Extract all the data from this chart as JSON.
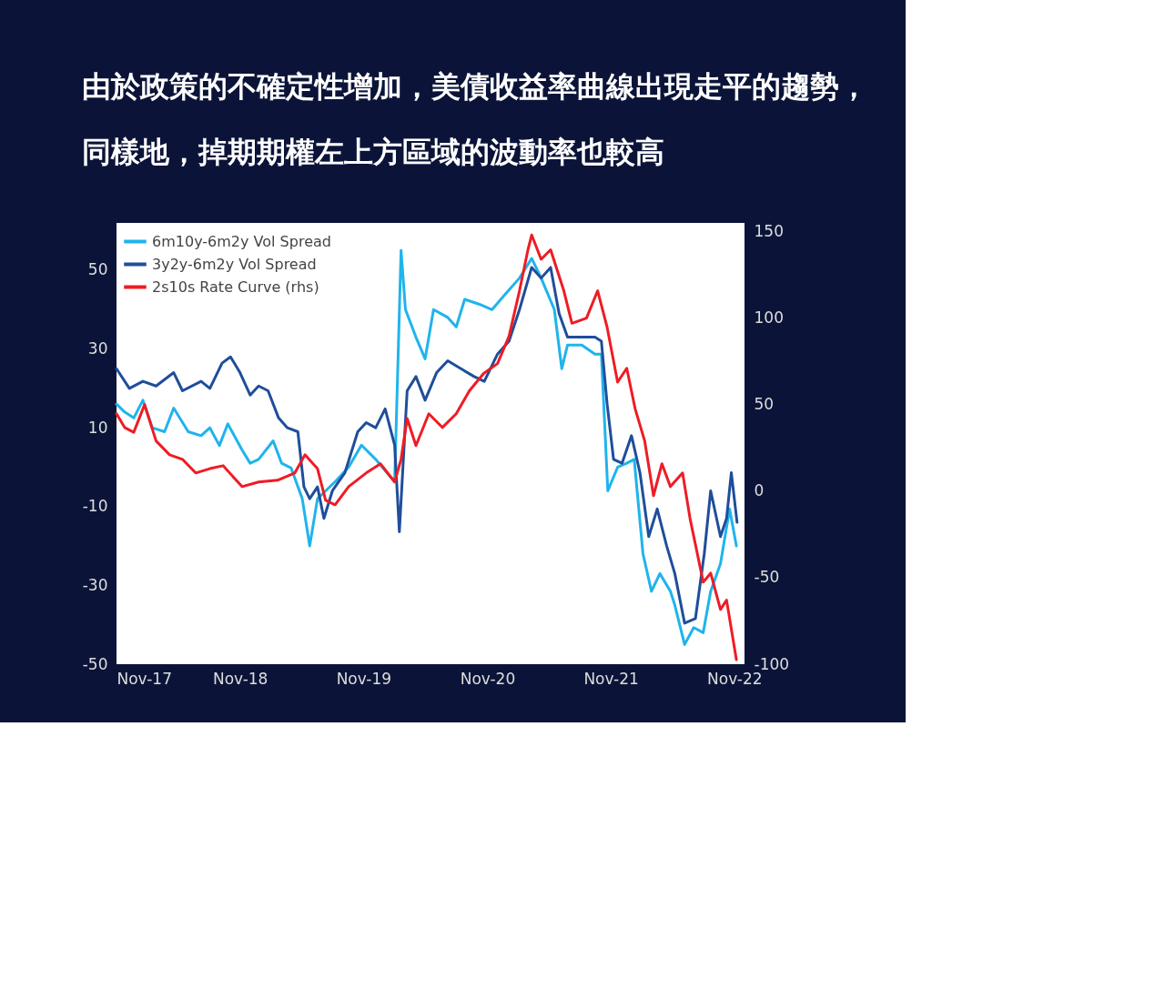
{
  "chart_data": {
    "type": "line",
    "title": "由於政策的不確定性增加，美債收益率曲線出現走平的趨勢，",
    "subtitle": "同樣地，掉期期權左上方區域的波動率也較高",
    "xlim": [
      "2017-11-01",
      "2022-12-01"
    ],
    "xticks": [
      {
        "value": "2017-11-01",
        "label": "Nov-17"
      },
      {
        "value": "2018-11-01",
        "label": "Nov-18"
      },
      {
        "value": "2019-11-01",
        "label": "Nov-19"
      },
      {
        "value": "2020-11-01",
        "label": "Nov-20"
      },
      {
        "value": "2021-11-01",
        "label": "Nov-21"
      },
      {
        "value": "2022-11-01",
        "label": "Nov-22"
      }
    ],
    "ylim": [
      -50,
      62
    ],
    "yticks": [
      50,
      30,
      10,
      -10,
      -30,
      -50
    ],
    "y2lim": [
      -100,
      155
    ],
    "y2ticks": [
      150,
      100,
      50,
      0,
      -50,
      -100
    ],
    "legend": "top left",
    "grid": false,
    "series": [
      {
        "name": "6m10y-6m2y Vol Spread",
        "color": "#1fb4ec",
        "x": [
          "2017-11-01",
          "2017-11-25",
          "2017-12-22",
          "2018-01-18",
          "2018-02-15",
          "2018-03-23",
          "2018-04-19",
          "2018-06-01",
          "2018-07-09",
          "2018-08-04",
          "2018-09-01",
          "2018-09-26",
          "2018-11-07",
          "2018-12-01",
          "2018-12-26",
          "2019-02-07",
          "2019-03-04",
          "2019-04-01",
          "2019-05-04",
          "2019-05-26",
          "2019-06-18",
          "2019-07-12",
          "2019-08-09",
          "2019-09-18",
          "2019-10-26",
          "2019-12-07",
          "2020-02-01",
          "2020-02-20",
          "2020-03-04",
          "2020-04-04",
          "2020-05-01",
          "2020-05-26",
          "2020-07-07",
          "2020-08-01",
          "2020-08-26",
          "2020-10-07",
          "2020-11-15",
          "2020-12-23",
          "2021-02-04",
          "2021-03-12",
          "2021-04-09",
          "2021-05-18",
          "2021-06-09",
          "2021-06-26",
          "2021-08-07",
          "2021-09-15",
          "2021-10-04",
          "2021-10-23",
          "2021-11-21",
          "2021-12-18",
          "2022-01-09",
          "2022-02-04",
          "2022-03-01",
          "2022-03-26",
          "2022-04-26",
          "2022-05-09",
          "2022-06-07",
          "2022-07-04",
          "2022-08-01",
          "2022-08-23",
          "2022-09-21",
          "2022-10-18",
          "2022-11-07"
        ],
        "values": [
          16,
          14,
          12.5,
          17,
          10,
          9,
          15,
          9,
          8,
          10,
          5.5,
          11,
          4.4,
          1,
          2,
          6.7,
          1,
          -0.2,
          -8,
          -20,
          -8,
          -6,
          -3.7,
          0,
          5.6,
          2,
          -3.7,
          55,
          40,
          33,
          27.5,
          40,
          38,
          35.6,
          42.6,
          41.4,
          40,
          43.8,
          48,
          53,
          48,
          40,
          25,
          31,
          31,
          28.7,
          28.7,
          -6,
          0,
          1,
          2,
          -22,
          -31.5,
          -27,
          -31.5,
          -35,
          -45,
          -40.7,
          -42,
          -31.5,
          -24.5,
          -10.6,
          -20
        ]
      },
      {
        "name": "3y2y-6m2y Vol Spread",
        "color": "#1f4e9a",
        "x": [
          "2017-11-01",
          "2017-12-09",
          "2018-01-18",
          "2018-02-26",
          "2018-04-19",
          "2018-05-15",
          "2018-07-09",
          "2018-08-04",
          "2018-09-09",
          "2018-10-04",
          "2018-11-01",
          "2018-12-01",
          "2018-12-26",
          "2019-01-23",
          "2019-02-23",
          "2019-03-21",
          "2019-04-21",
          "2019-05-09",
          "2019-05-26",
          "2019-06-18",
          "2019-07-07",
          "2019-08-01",
          "2019-09-07",
          "2019-10-15",
          "2019-11-09",
          "2019-12-07",
          "2020-01-04",
          "2020-02-01",
          "2020-02-15",
          "2020-03-09",
          "2020-04-04",
          "2020-05-01",
          "2020-06-04",
          "2020-07-07",
          "2020-08-15",
          "2020-09-23",
          "2020-10-23",
          "2020-12-01",
          "2021-01-04",
          "2021-02-04",
          "2021-03-12",
          "2021-04-09",
          "2021-05-07",
          "2021-06-01",
          "2021-06-26",
          "2021-08-07",
          "2021-09-15",
          "2021-10-04",
          "2021-10-21",
          "2021-11-09",
          "2021-12-04",
          "2022-01-01",
          "2022-01-26",
          "2022-02-21",
          "2022-03-18",
          "2022-04-15",
          "2022-05-09",
          "2022-06-07",
          "2022-07-09",
          "2022-08-04",
          "2022-08-23",
          "2022-09-21",
          "2022-10-09",
          "2022-10-23",
          "2022-11-09"
        ],
        "values": [
          25,
          20,
          21.8,
          20.6,
          24,
          19.4,
          21.8,
          20,
          26.4,
          28,
          24,
          18.3,
          20.6,
          19.4,
          12.5,
          10,
          9,
          -5,
          -8,
          -5,
          -13,
          -6,
          -1.4,
          9,
          11.3,
          10,
          14.8,
          5.6,
          -16.4,
          19.4,
          23,
          17,
          24,
          27,
          25,
          23,
          21.8,
          28.7,
          32,
          40,
          50.7,
          48,
          50.7,
          39,
          33,
          33,
          33,
          32,
          16,
          2,
          1,
          8,
          -1.4,
          -17.6,
          -10.6,
          -20,
          -27,
          -39.6,
          -38.4,
          -22,
          -6,
          -17.6,
          -13,
          -1.4,
          -14
        ]
      },
      {
        "name": "2s10s Rate Curve (rhs)",
        "color": "#ee1c25",
        "axis": "y2",
        "x": [
          "2017-11-01",
          "2017-11-25",
          "2017-12-22",
          "2018-01-23",
          "2018-02-26",
          "2018-04-07",
          "2018-05-15",
          "2018-06-23",
          "2018-08-04",
          "2018-09-12",
          "2018-11-07",
          "2018-12-26",
          "2019-02-20",
          "2019-04-12",
          "2019-05-12",
          "2019-06-18",
          "2019-07-12",
          "2019-08-09",
          "2019-09-18",
          "2019-11-09",
          "2019-12-21",
          "2020-02-01",
          "2020-02-20",
          "2020-03-09",
          "2020-04-04",
          "2020-05-12",
          "2020-06-21",
          "2020-08-01",
          "2020-09-09",
          "2020-10-21",
          "2020-12-01",
          "2021-01-04",
          "2021-02-04",
          "2021-03-01",
          "2021-03-12",
          "2021-04-09",
          "2021-05-07",
          "2021-06-15",
          "2021-07-09",
          "2021-08-21",
          "2021-09-23",
          "2021-10-21",
          "2021-11-21",
          "2021-12-18",
          "2022-01-12",
          "2022-02-09",
          "2022-03-07",
          "2022-04-01",
          "2022-04-26",
          "2022-06-01",
          "2022-06-23",
          "2022-08-01",
          "2022-08-23",
          "2022-09-21",
          "2022-10-09",
          "2022-11-07"
        ],
        "values": [
          44.7,
          36.8,
          34,
          50,
          29,
          21,
          18.4,
          10.5,
          13,
          14.7,
          2.6,
          5.3,
          6.3,
          10.5,
          21,
          13,
          -5.3,
          -7.9,
          2.6,
          10.5,
          15.8,
          5.3,
          18.4,
          42,
          26.3,
          44.7,
          36.8,
          44.7,
          58,
          68,
          73.7,
          89.5,
          115.8,
          139.5,
          148,
          134,
          139.5,
          115.8,
          97,
          100,
          115.8,
          94.7,
          63,
          71,
          47.4,
          29,
          -2.6,
          15.8,
          2.6,
          10.5,
          -15.8,
          -52.6,
          -47.4,
          -68.4,
          -63,
          -97.4
        ]
      }
    ]
  }
}
